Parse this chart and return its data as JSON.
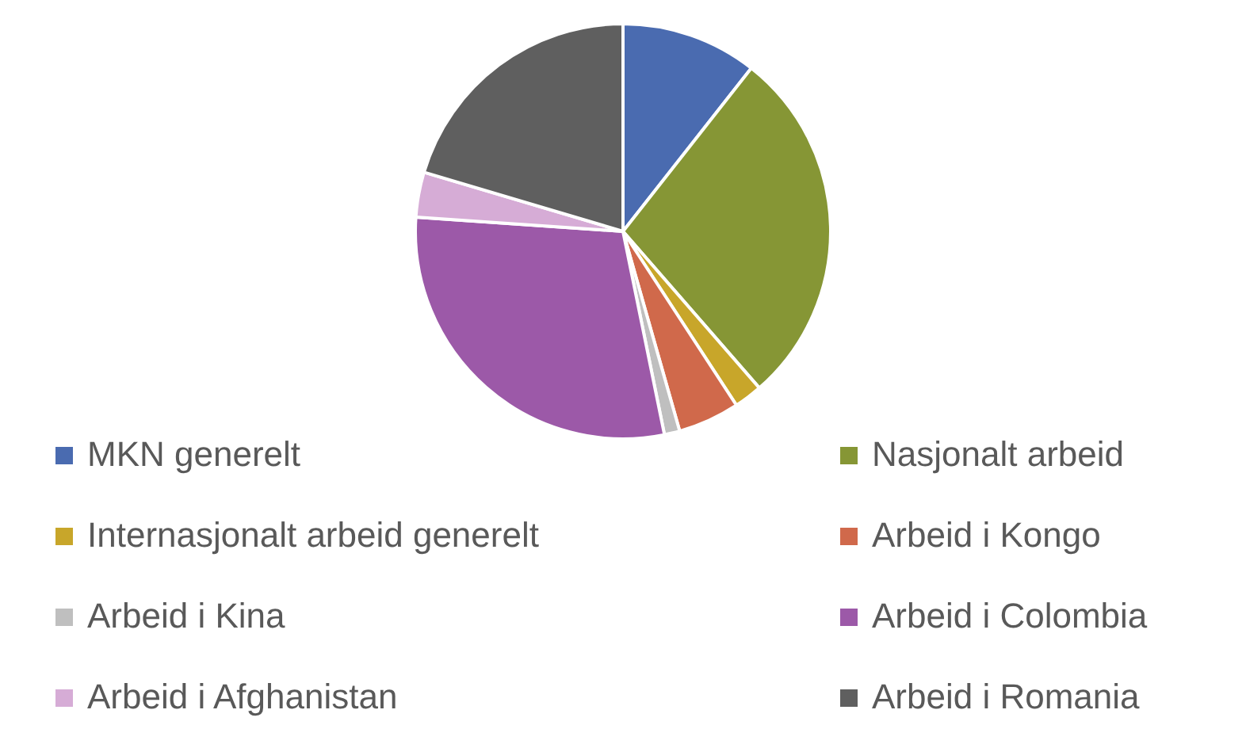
{
  "chart_data": {
    "type": "pie",
    "categories": [
      "MKN generelt",
      "Nasjonalt arbeid",
      "Internasjonalt arbeid generelt",
      "Arbeid i Kongo",
      "Arbeid i Kina",
      "Arbeid i Colombia",
      "Arbeid i Afghanistan",
      "Arbeid i Romania"
    ],
    "values": [
      10.6,
      28,
      2.2,
      4.8,
      1.2,
      29.3,
      3.5,
      20.4
    ],
    "colors": [
      "#4a6bb0",
      "#869635",
      "#c8a62a",
      "#d0694b",
      "#bfbfbf",
      "#9c59a8",
      "#d6acd6",
      "#5f5f5f"
    ],
    "legend": "bottom"
  }
}
